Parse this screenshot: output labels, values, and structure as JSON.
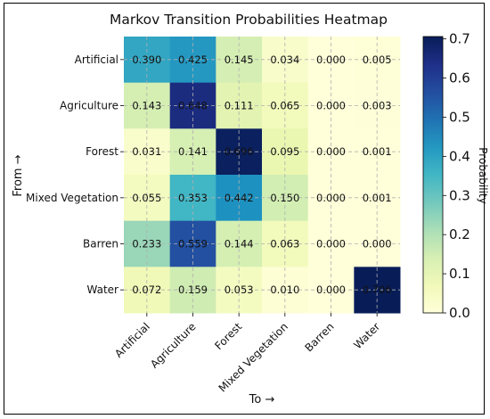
{
  "chart_data": {
    "type": "heatmap",
    "title": "Markov Transition Probabilities Heatmap",
    "xlabel": "To →",
    "ylabel": "From →",
    "x_categories": [
      "Artificial",
      "Agriculture",
      "Forest",
      "Mixed Vegetation",
      "Barren",
      "Water"
    ],
    "y_categories": [
      "Artificial",
      "Agriculture",
      "Forest",
      "Mixed Vegetation",
      "Barren",
      "Water"
    ],
    "values": [
      [
        0.39,
        0.425,
        0.145,
        0.034,
        0.0,
        0.005
      ],
      [
        0.143,
        0.648,
        0.111,
        0.065,
        0.0,
        0.003
      ],
      [
        0.031,
        0.141,
        0.696,
        0.095,
        0.0,
        0.001
      ],
      [
        0.055,
        0.353,
        0.442,
        0.15,
        0.0,
        0.001
      ],
      [
        0.233,
        0.559,
        0.144,
        0.063,
        0.0,
        0.0
      ],
      [
        0.072,
        0.159,
        0.053,
        0.01,
        0.0,
        0.706
      ]
    ],
    "value_labels": [
      [
        "0.390",
        "0.425",
        "0.145",
        "0.034",
        "0.000",
        "0.005"
      ],
      [
        "0.143",
        "0.648",
        "0.111",
        "0.065",
        "0.000",
        "0.003"
      ],
      [
        "0.031",
        "0.141",
        "0.696",
        "0.095",
        "0.000",
        "0.001"
      ],
      [
        "0.055",
        "0.353",
        "0.442",
        "0.150",
        "0.000",
        "0.001"
      ],
      [
        "0.233",
        "0.559",
        "0.144",
        "0.063",
        "0.000",
        "0.000"
      ],
      [
        "0.072",
        "0.159",
        "0.053",
        "0.010",
        "0.000",
        "0.706"
      ]
    ],
    "colorbar": {
      "label": "Probability",
      "range": [
        0,
        0.706
      ],
      "ticks": [
        "0.0",
        "0.1",
        "0.2",
        "0.3",
        "0.4",
        "0.5",
        "0.6",
        "0.7"
      ],
      "tick_values": [
        0.0,
        0.1,
        0.2,
        0.3,
        0.4,
        0.5,
        0.6,
        0.7
      ],
      "colormap": "YlGnBu"
    },
    "grid": true
  }
}
